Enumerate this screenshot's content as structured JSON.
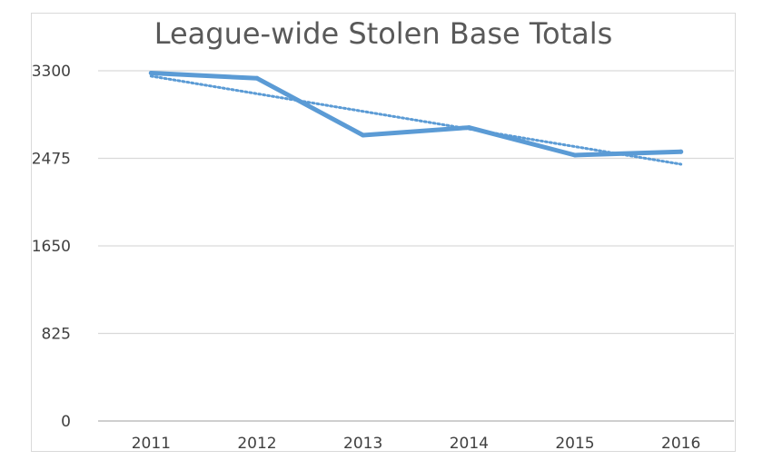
{
  "chart_data": {
    "type": "line",
    "title": "League-wide Stolen Base Totals",
    "xlabel": "",
    "ylabel": "",
    "categories": [
      "2011",
      "2012",
      "2013",
      "2014",
      "2015",
      "2016"
    ],
    "series": [
      {
        "values": [
          3279,
          3229,
          2693,
          2765,
          2505,
          2537
        ]
      }
    ],
    "trendline": {
      "type": "linear",
      "style": "dotted"
    },
    "ylim": [
      0,
      3300
    ],
    "yticks": [
      "0",
      "825",
      "1650",
      "2475",
      "3300"
    ],
    "grid": "horizontal",
    "colors": {
      "line": "#5b9bd5",
      "trend": "#5b9bd5",
      "grid": "#d9d9d9",
      "axis": "#bfbfbf"
    }
  }
}
